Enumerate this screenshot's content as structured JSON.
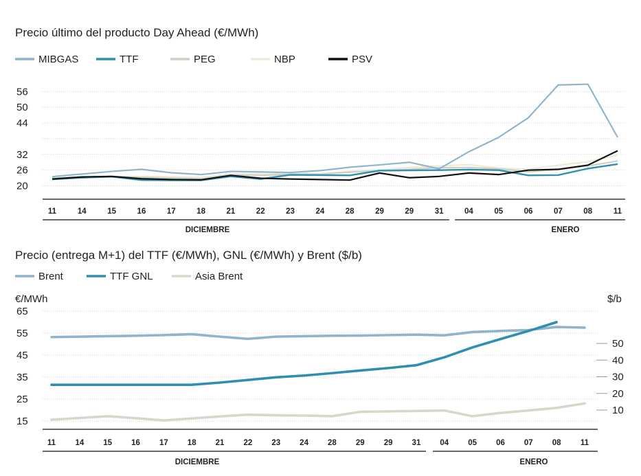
{
  "chart_data": [
    {
      "type": "line",
      "title": "Precio último del producto Day Ahead (€/MWh)",
      "categories": [
        "11",
        "14",
        "15",
        "16",
        "17",
        "18",
        "21",
        "22",
        "23",
        "24",
        "28",
        "29",
        "29",
        "31",
        "04",
        "05",
        "06",
        "07",
        "08",
        "11"
      ],
      "months": [
        {
          "label": "DICIEMBRE",
          "from": 0,
          "to": 13
        },
        {
          "label": "ENERO",
          "from": 14,
          "to": 19
        }
      ],
      "yticks": [
        20,
        26,
        32,
        38,
        44,
        50,
        56
      ],
      "ytick_labels": [
        "20",
        "26",
        "32",
        "",
        "44",
        "50",
        "56"
      ],
      "ylim": [
        17,
        60
      ],
      "legend_position": "top-left",
      "grid": true,
      "series": [
        {
          "name": "MIBGAS",
          "color": "#8fb4cc",
          "width": 2.2,
          "values": [
            23.5,
            24.5,
            25.5,
            26.3,
            25.0,
            24.3,
            25.5,
            25.3,
            25.1,
            25.8,
            27.1,
            28.0,
            29.0,
            26.5,
            33.0,
            38.5,
            46.0,
            58.5,
            58.8,
            38.5
          ]
        },
        {
          "name": "TTF",
          "color": "#2e8fb0",
          "width": 2.4,
          "values": [
            22.5,
            23.1,
            23.5,
            22.2,
            22.1,
            22.1,
            23.6,
            22.6,
            24.2,
            24.1,
            24.0,
            25.8,
            25.9,
            26.0,
            26.2,
            26.0,
            24.0,
            24.1,
            26.6,
            28.3
          ]
        },
        {
          "name": "PEG",
          "color": "#cfd0c3",
          "width": 2.2,
          "values": [
            22.8,
            23.4,
            23.6,
            23.2,
            23.0,
            22.6,
            24.2,
            24.0,
            24.4,
            24.4,
            25.2,
            25.8,
            26.3,
            26.9,
            27.0,
            26.5,
            25.4,
            26.2,
            27.6,
            29.5
          ]
        },
        {
          "name": "NBP",
          "color": "#ebebd9",
          "width": 2.2,
          "values": [
            23.0,
            23.3,
            23.4,
            23.6,
            23.4,
            23.2,
            24.5,
            24.5,
            24.6,
            24.6,
            25.5,
            26.2,
            27.0,
            27.6,
            28.1,
            26.8,
            26.3,
            27.9,
            29.2,
            31.7
          ]
        },
        {
          "name": "PSV",
          "color": "#111111",
          "width": 2.2,
          "values": [
            22.6,
            23.4,
            23.6,
            22.7,
            22.4,
            22.3,
            24.0,
            22.9,
            22.6,
            22.4,
            22.2,
            24.9,
            23.1,
            23.6,
            24.9,
            24.3,
            26.0,
            26.3,
            27.9,
            33.4
          ]
        }
      ]
    },
    {
      "type": "line",
      "title": "Precio (entrega M+1) del TTF (€/MWh), GNL (€/MWh) y Brent ($/b)",
      "ylabel_left": "€/MWh",
      "ylabel_right": "$/b",
      "categories": [
        "11",
        "14",
        "15",
        "16",
        "17",
        "18",
        "21",
        "22",
        "23",
        "24",
        "28",
        "29",
        "29",
        "31",
        "04",
        "05",
        "06",
        "07",
        "08",
        "11"
      ],
      "months": [
        {
          "label": "DICIEMBRE",
          "from": 0,
          "to": 13
        },
        {
          "label": "ENERO",
          "from": 14,
          "to": 19
        }
      ],
      "yticks_left": [
        15,
        25,
        35,
        45,
        55,
        65
      ],
      "ylim_left": [
        12,
        67
      ],
      "yticks_right": [
        10,
        20,
        30,
        40,
        50
      ],
      "ylim_right": [
        0,
        60
      ],
      "legend_position": "top-left",
      "grid": true,
      "series": [
        {
          "name": "Brent",
          "color": "#8fb4cc",
          "width": 3.6,
          "values": [
            53.2,
            53.4,
            53.6,
            53.8,
            54.1,
            54.5,
            53.4,
            52.4,
            53.4,
            53.6,
            53.8,
            53.9,
            54.1,
            54.3,
            54.0,
            55.5,
            56.0,
            56.4,
            57.8,
            57.5
          ]
        },
        {
          "name": "TTF GNL",
          "color": "#2e8fb0",
          "width": 3.6,
          "values": [
            31.5,
            31.5,
            31.5,
            31.5,
            31.5,
            31.5,
            32.5,
            33.7,
            34.9,
            35.7,
            36.8,
            38.0,
            39.1,
            40.4,
            44.0,
            48.5,
            52.3,
            56.0,
            60.0,
            null
          ]
        },
        {
          "name": "Asia Brent",
          "color": "#d7d8cc",
          "width": 3.6,
          "values": [
            15.6,
            16.4,
            17.2,
            16.3,
            15.3,
            16.2,
            17.1,
            17.9,
            17.6,
            17.5,
            17.2,
            19.2,
            19.4,
            19.6,
            19.8,
            17.2,
            18.7,
            19.8,
            21.0,
            23.0
          ]
        }
      ]
    }
  ]
}
